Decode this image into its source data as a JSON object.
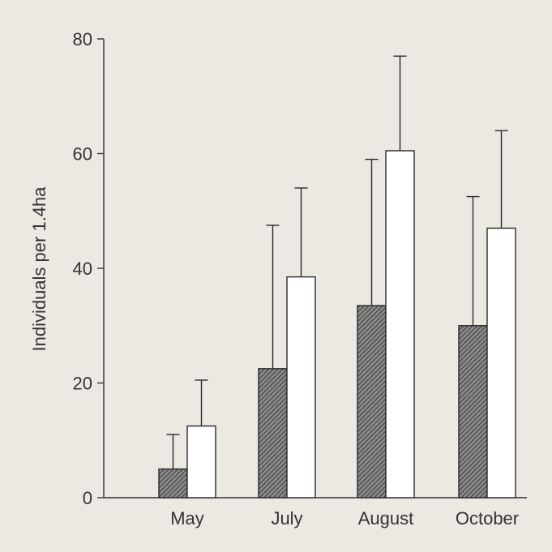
{
  "chart_data": {
    "type": "bar",
    "title": "",
    "xlabel": "",
    "ylabel": "Individuals per 1.4ha",
    "ylim": [
      0,
      80
    ],
    "yticks": [
      0,
      20,
      40,
      60,
      80
    ],
    "categories": [
      "May",
      "July",
      "August",
      "October"
    ],
    "series": [
      {
        "fill": "hatched",
        "values": [
          5,
          22.5,
          33.5,
          30
        ],
        "error": [
          6,
          25,
          25.5,
          22.5
        ]
      },
      {
        "fill": "open",
        "values": [
          12.5,
          38.5,
          60.5,
          47
        ],
        "error": [
          8,
          15.5,
          16.5,
          17
        ]
      }
    ],
    "grid": false,
    "legend": "none"
  }
}
